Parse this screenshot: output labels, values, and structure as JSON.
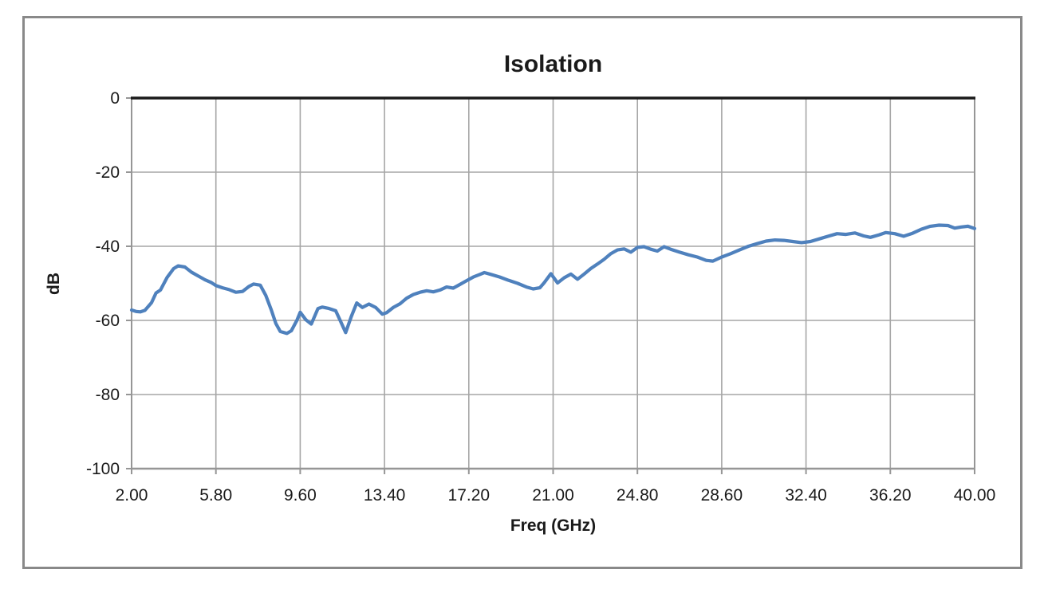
{
  "chart_data": {
    "type": "line",
    "title": "Isolation",
    "xlabel": "Freq (GHz)",
    "ylabel": "dB",
    "xlim": [
      2.0,
      40.0
    ],
    "ylim": [
      -100,
      0
    ],
    "x_tick_labels": [
      "2.00",
      "5.80",
      "9.60",
      "13.40",
      "17.20",
      "21.00",
      "24.80",
      "28.60",
      "32.40",
      "36.20",
      "40.00"
    ],
    "x_tick_values": [
      2.0,
      5.8,
      9.6,
      13.4,
      17.2,
      21.0,
      24.8,
      28.6,
      32.4,
      36.2,
      40.0
    ],
    "y_tick_labels": [
      "0",
      "-20",
      "-40",
      "-60",
      "-80",
      "-100"
    ],
    "y_tick_values": [
      0,
      -20,
      -40,
      -60,
      -80,
      -100
    ],
    "grid": true,
    "legend_position": "none",
    "series": [
      {
        "name": "Isolation",
        "color": "#4F81BD",
        "x": [
          2.0,
          2.2,
          2.4,
          2.6,
          2.9,
          3.1,
          3.3,
          3.6,
          3.9,
          4.1,
          4.4,
          4.7,
          5.0,
          5.3,
          5.6,
          5.8,
          6.1,
          6.4,
          6.7,
          7.0,
          7.3,
          7.5,
          7.8,
          8.05,
          8.3,
          8.5,
          8.7,
          9.0,
          9.2,
          9.45,
          9.6,
          9.85,
          10.1,
          10.4,
          10.6,
          10.9,
          11.2,
          11.4,
          11.65,
          11.9,
          12.15,
          12.4,
          12.7,
          13.0,
          13.3,
          13.5,
          13.8,
          14.1,
          14.4,
          14.7,
          15.0,
          15.3,
          15.6,
          15.9,
          16.2,
          16.5,
          16.8,
          17.1,
          17.4,
          17.7,
          17.9,
          18.2,
          18.6,
          19.0,
          19.4,
          19.8,
          20.1,
          20.4,
          20.6,
          20.9,
          21.2,
          21.5,
          21.8,
          22.1,
          22.4,
          22.7,
          23.0,
          23.3,
          23.6,
          23.9,
          24.2,
          24.5,
          24.8,
          25.1,
          25.4,
          25.7,
          26.0,
          26.3,
          26.7,
          27.1,
          27.5,
          27.9,
          28.2,
          28.6,
          29.0,
          29.4,
          29.8,
          30.2,
          30.6,
          31.0,
          31.4,
          31.8,
          32.2,
          32.6,
          33.0,
          33.4,
          33.8,
          34.2,
          34.6,
          35.0,
          35.3,
          35.7,
          36.0,
          36.4,
          36.8,
          37.2,
          37.6,
          38.0,
          38.4,
          38.8,
          39.1,
          39.4,
          39.7,
          40.0
        ],
        "y": [
          -57.2,
          -57.6,
          -57.7,
          -57.3,
          -55.2,
          -52.6,
          -51.8,
          -48.4,
          -46.0,
          -45.3,
          -45.6,
          -47.0,
          -48.0,
          -49.0,
          -49.8,
          -50.6,
          -51.2,
          -51.7,
          -52.4,
          -52.2,
          -50.8,
          -50.2,
          -50.5,
          -53.3,
          -57.2,
          -60.8,
          -63.0,
          -63.5,
          -62.8,
          -60.0,
          -57.8,
          -59.8,
          -61.0,
          -56.8,
          -56.4,
          -56.8,
          -57.4,
          -60.0,
          -63.3,
          -59.0,
          -55.3,
          -56.5,
          -55.6,
          -56.5,
          -58.3,
          -57.9,
          -56.5,
          -55.5,
          -54.0,
          -53.0,
          -52.4,
          -52.0,
          -52.3,
          -51.8,
          -51.0,
          -51.3,
          -50.3,
          -49.3,
          -48.3,
          -47.6,
          -47.1,
          -47.6,
          -48.3,
          -49.2,
          -50.0,
          -51.0,
          -51.5,
          -51.2,
          -49.8,
          -47.4,
          -49.9,
          -48.5,
          -47.5,
          -48.9,
          -47.5,
          -46.0,
          -44.8,
          -43.5,
          -42.0,
          -41.0,
          -40.7,
          -41.6,
          -40.3,
          -40.1,
          -40.8,
          -41.3,
          -40.1,
          -40.8,
          -41.6,
          -42.3,
          -42.9,
          -43.8,
          -44.0,
          -42.9,
          -42.0,
          -41.0,
          -40.0,
          -39.3,
          -38.6,
          -38.3,
          -38.4,
          -38.7,
          -39.0,
          -38.7,
          -38.0,
          -37.3,
          -36.6,
          -36.8,
          -36.4,
          -37.2,
          -37.6,
          -36.9,
          -36.3,
          -36.6,
          -37.3,
          -36.5,
          -35.4,
          -34.6,
          -34.3,
          -34.4,
          -35.1,
          -34.8,
          -34.6,
          -35.2
        ]
      }
    ]
  },
  "colors": {
    "series_line": "#4F81BD",
    "gridline": "#A6A6A6",
    "plot_border": "#969696",
    "zero_axis": "#1A1A1A",
    "outer_frame": "#898989",
    "text": "#1A1A1A",
    "background": "#FFFFFF"
  }
}
